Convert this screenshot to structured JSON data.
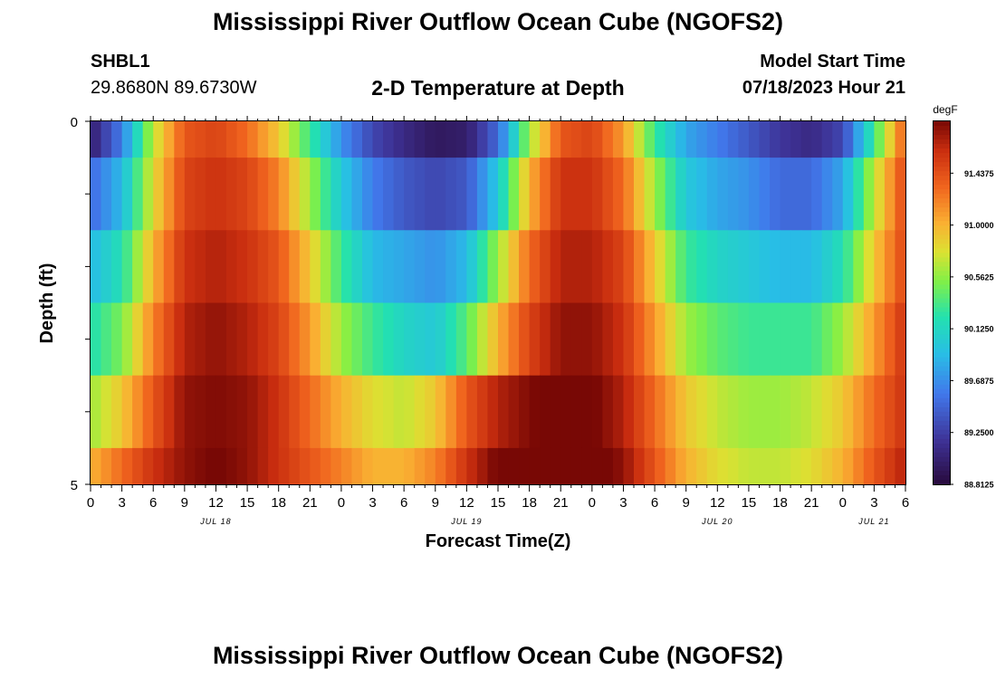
{
  "page": {
    "title": "Mississippi River Outflow Ocean Cube (NGOFS2)",
    "title_repeat": "Mississippi River Outflow Ocean Cube (NGOFS2)",
    "station_id": "SHBL1",
    "coords": "29.8680N  89.6730W",
    "model_start_label": "Model Start Time",
    "model_start_value": "07/18/2023 Hour 21"
  },
  "chart_data": {
    "type": "heatmap",
    "title": "2-D Temperature at Depth",
    "xlabel": "Forecast Time(Z)",
    "ylabel": "Depth (ft)",
    "colorbar_unit": "degF",
    "y_ticks": [
      "0",
      "5"
    ],
    "y_range": [
      0,
      5
    ],
    "x_ticks": [
      "0",
      "3",
      "6",
      "9",
      "12",
      "15",
      "18",
      "21",
      "0",
      "3",
      "6",
      "9",
      "12",
      "15",
      "18",
      "21",
      "0",
      "3",
      "6",
      "9",
      "12",
      "15",
      "18",
      "21",
      "0",
      "3",
      "6"
    ],
    "x_range_hours": [
      0,
      78
    ],
    "date_labels": [
      {
        "label": "JUL 18",
        "hour": 12
      },
      {
        "label": "JUL 19",
        "hour": 36
      },
      {
        "label": "JUL 20",
        "hour": 60
      },
      {
        "label": "JUL 21",
        "hour": 75
      }
    ],
    "colorbar_ticks": [
      "91.4375",
      "91.0000",
      "90.5625",
      "90.1250",
      "89.6875",
      "89.2500",
      "88.8125"
    ],
    "colorbar_tick_values": [
      91.4375,
      91.0,
      90.5625,
      90.125,
      89.6875,
      89.25,
      88.8125
    ],
    "value_range": [
      88.8125,
      91.875
    ],
    "layers": [
      {
        "depth_range": [
          0,
          0.5
        ],
        "keyframes": [
          [
            0,
            89.0
          ],
          [
            3,
            89.6
          ],
          [
            6,
            90.7
          ],
          [
            9,
            91.4
          ],
          [
            12,
            91.5
          ],
          [
            15,
            91.3
          ],
          [
            18,
            90.9
          ],
          [
            21,
            90.3
          ],
          [
            24,
            89.7
          ],
          [
            27,
            89.3
          ],
          [
            30,
            89.1
          ],
          [
            33,
            88.95
          ],
          [
            36,
            89.0
          ],
          [
            39,
            89.5
          ],
          [
            42,
            90.6
          ],
          [
            45,
            91.4
          ],
          [
            48,
            91.5
          ],
          [
            51,
            91.1
          ],
          [
            54,
            90.3
          ],
          [
            57,
            89.8
          ],
          [
            60,
            89.6
          ],
          [
            63,
            89.4
          ],
          [
            66,
            89.2
          ],
          [
            69,
            89.1
          ],
          [
            72,
            89.3
          ],
          [
            75,
            90.3
          ],
          [
            78,
            91.4
          ]
        ]
      },
      {
        "depth_range": [
          0.5,
          1.5
        ],
        "keyframes": [
          [
            0,
            89.5
          ],
          [
            3,
            89.9
          ],
          [
            6,
            90.8
          ],
          [
            9,
            91.5
          ],
          [
            12,
            91.6
          ],
          [
            15,
            91.5
          ],
          [
            18,
            91.2
          ],
          [
            21,
            90.6
          ],
          [
            24,
            90.0
          ],
          [
            27,
            89.6
          ],
          [
            30,
            89.4
          ],
          [
            33,
            89.3
          ],
          [
            36,
            89.4
          ],
          [
            39,
            90.0
          ],
          [
            42,
            91.0
          ],
          [
            45,
            91.6
          ],
          [
            48,
            91.6
          ],
          [
            51,
            91.3
          ],
          [
            54,
            90.6
          ],
          [
            57,
            90.0
          ],
          [
            60,
            89.8
          ],
          [
            63,
            89.7
          ],
          [
            66,
            89.5
          ],
          [
            69,
            89.5
          ],
          [
            72,
            89.8
          ],
          [
            75,
            90.7
          ],
          [
            78,
            91.5
          ]
        ]
      },
      {
        "depth_range": [
          1.5,
          2.5
        ],
        "keyframes": [
          [
            0,
            89.9
          ],
          [
            3,
            90.2
          ],
          [
            6,
            91.0
          ],
          [
            9,
            91.6
          ],
          [
            12,
            91.7
          ],
          [
            15,
            91.6
          ],
          [
            18,
            91.4
          ],
          [
            21,
            90.9
          ],
          [
            24,
            90.3
          ],
          [
            27,
            89.9
          ],
          [
            30,
            89.8
          ],
          [
            33,
            89.7
          ],
          [
            36,
            89.9
          ],
          [
            39,
            90.6
          ],
          [
            42,
            91.3
          ],
          [
            45,
            91.7
          ],
          [
            48,
            91.7
          ],
          [
            51,
            91.5
          ],
          [
            54,
            90.9
          ],
          [
            57,
            90.3
          ],
          [
            60,
            90.1
          ],
          [
            63,
            90.0
          ],
          [
            66,
            89.9
          ],
          [
            69,
            89.9
          ],
          [
            72,
            90.2
          ],
          [
            75,
            90.9
          ],
          [
            78,
            91.5
          ]
        ]
      },
      {
        "depth_range": [
          2.5,
          3.5
        ],
        "keyframes": [
          [
            0,
            90.2
          ],
          [
            3,
            90.5
          ],
          [
            6,
            91.2
          ],
          [
            9,
            91.7
          ],
          [
            12,
            91.8
          ],
          [
            15,
            91.7
          ],
          [
            18,
            91.5
          ],
          [
            21,
            91.1
          ],
          [
            24,
            90.6
          ],
          [
            27,
            90.3
          ],
          [
            30,
            90.1
          ],
          [
            33,
            90.0
          ],
          [
            36,
            90.4
          ],
          [
            39,
            91.0
          ],
          [
            42,
            91.5
          ],
          [
            45,
            91.8
          ],
          [
            48,
            91.8
          ],
          [
            51,
            91.6
          ],
          [
            54,
            91.1
          ],
          [
            57,
            90.6
          ],
          [
            60,
            90.4
          ],
          [
            63,
            90.3
          ],
          [
            66,
            90.3
          ],
          [
            69,
            90.3
          ],
          [
            72,
            90.6
          ],
          [
            75,
            91.1
          ],
          [
            78,
            91.6
          ]
        ]
      },
      {
        "depth_range": [
          3.5,
          4.5
        ],
        "keyframes": [
          [
            0,
            90.6
          ],
          [
            3,
            90.9
          ],
          [
            6,
            91.4
          ],
          [
            9,
            91.8
          ],
          [
            12,
            91.85
          ],
          [
            15,
            91.8
          ],
          [
            18,
            91.6
          ],
          [
            21,
            91.3
          ],
          [
            24,
            91.0
          ],
          [
            27,
            90.8
          ],
          [
            30,
            90.7
          ],
          [
            33,
            90.9
          ],
          [
            36,
            91.4
          ],
          [
            39,
            91.7
          ],
          [
            42,
            91.85
          ],
          [
            45,
            91.95
          ],
          [
            48,
            91.9
          ],
          [
            51,
            91.7
          ],
          [
            54,
            91.3
          ],
          [
            57,
            90.9
          ],
          [
            60,
            90.7
          ],
          [
            63,
            90.6
          ],
          [
            66,
            90.6
          ],
          [
            69,
            90.7
          ],
          [
            72,
            90.9
          ],
          [
            75,
            91.3
          ],
          [
            78,
            91.6
          ]
        ]
      },
      {
        "depth_range": [
          4.5,
          5.0
        ],
        "keyframes": [
          [
            0,
            91.0
          ],
          [
            3,
            91.3
          ],
          [
            6,
            91.6
          ],
          [
            9,
            91.8
          ],
          [
            12,
            91.9
          ],
          [
            15,
            91.8
          ],
          [
            18,
            91.6
          ],
          [
            21,
            91.4
          ],
          [
            24,
            91.2
          ],
          [
            27,
            91.0
          ],
          [
            30,
            91.0
          ],
          [
            33,
            91.2
          ],
          [
            36,
            91.6
          ],
          [
            39,
            91.9
          ],
          [
            42,
            92.1
          ],
          [
            45,
            92.15
          ],
          [
            48,
            92.0
          ],
          [
            51,
            91.8
          ],
          [
            54,
            91.4
          ],
          [
            57,
            91.0
          ],
          [
            60,
            90.8
          ],
          [
            63,
            90.7
          ],
          [
            66,
            90.7
          ],
          [
            69,
            90.8
          ],
          [
            72,
            91.0
          ],
          [
            75,
            91.4
          ],
          [
            78,
            91.7
          ]
        ]
      }
    ]
  }
}
